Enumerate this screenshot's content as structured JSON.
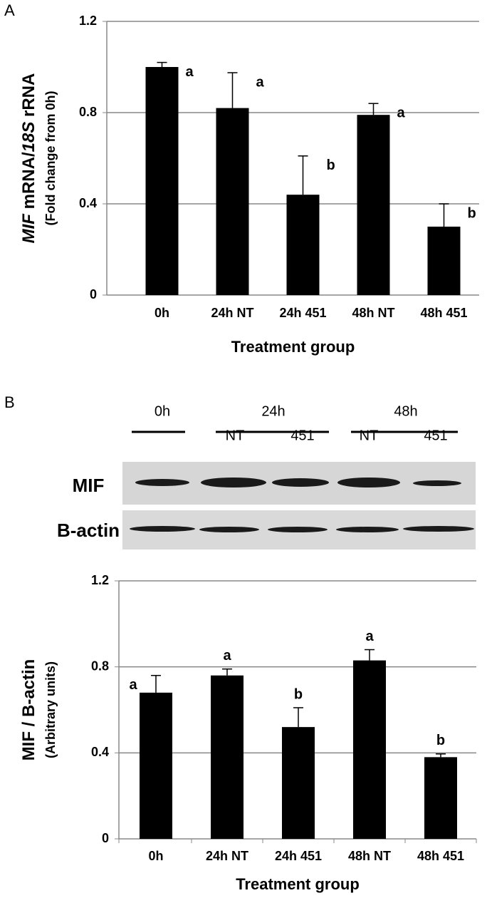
{
  "panels": [
    "A",
    "B"
  ],
  "blot": {
    "groups": [
      "0h",
      "24h",
      "48h"
    ],
    "lanes": [
      "NT",
      "451",
      "NT",
      "451"
    ],
    "rows": [
      "MIF",
      "B-actin"
    ]
  },
  "chart_data": [
    {
      "type": "bar",
      "categories": [
        "0h",
        "24h NT",
        "24h 451",
        "48h NT",
        "48h 451"
      ],
      "values": [
        1.0,
        0.82,
        0.44,
        0.79,
        0.3
      ],
      "errors": [
        0.02,
        0.155,
        0.17,
        0.05,
        0.1
      ],
      "annotations": [
        "a",
        "a",
        "b",
        "a",
        "b"
      ],
      "color": "#000000",
      "ylim": [
        0,
        1.2
      ],
      "yticks": [
        0,
        0.4,
        0.8,
        1.2
      ],
      "grid": true,
      "ylabel": [
        {
          "text": "MIF",
          "italic": true
        },
        {
          "text": " mRNA/"
        },
        {
          "text": "18S",
          "italic": true
        },
        {
          "text": " rRNA"
        }
      ],
      "ylabel_sub": "(Fold change from 0h)",
      "xlabel": "Treatment group"
    },
    {
      "type": "bar",
      "categories": [
        "0h",
        "24h NT",
        "24h 451",
        "48h NT",
        "48h 451"
      ],
      "values": [
        0.68,
        0.76,
        0.52,
        0.83,
        0.38
      ],
      "errors": [
        0.08,
        0.03,
        0.09,
        0.05,
        0.015
      ],
      "annotations": [
        "a",
        "a",
        "b",
        "a",
        "b"
      ],
      "color": "#000000",
      "ylim": [
        0,
        1.2
      ],
      "yticks": [
        0,
        0.4,
        0.8,
        1.2
      ],
      "grid": true,
      "ylabel": [
        {
          "text": "MIF / B-actin"
        }
      ],
      "ylabel_sub": "(Arbitrary units)",
      "xlabel": "Treatment group"
    }
  ]
}
